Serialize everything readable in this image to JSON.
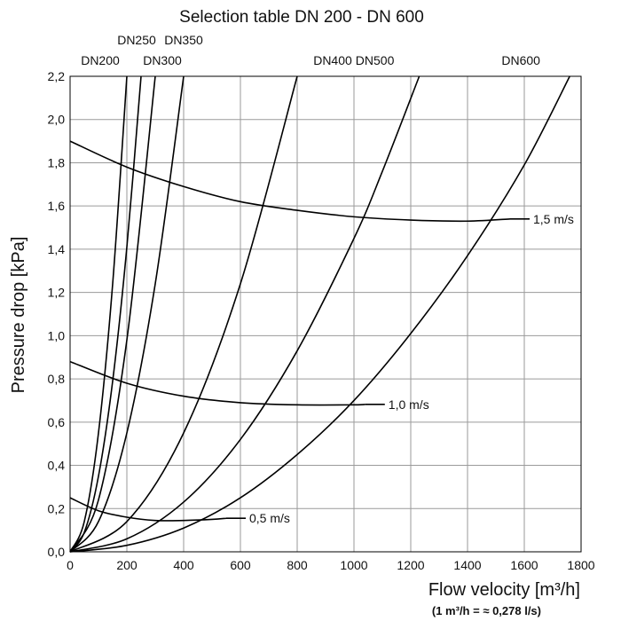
{
  "chart_data": {
    "type": "line",
    "title": "Selection table DN 200 - DN 600",
    "xlabel": "Flow velocity [m³/h]",
    "xlabel_note": "(1 m³/h = ≈ 0,278 l/s)",
    "ylabel": "Pressure drop [kPa]",
    "xlim": [
      0,
      1800
    ],
    "ylim": [
      0,
      2.2
    ],
    "grid": true,
    "x_ticks": [
      0,
      200,
      400,
      600,
      800,
      1000,
      1200,
      1400,
      1600,
      1800
    ],
    "x_tick_labels": [
      "0",
      "200",
      "400",
      "600",
      "800",
      "1000",
      "1200",
      "1400",
      "1600",
      "1800"
    ],
    "y_ticks": [
      0,
      0.2,
      0.4,
      0.6,
      0.8,
      1.0,
      1.2,
      1.4,
      1.6,
      1.8,
      2.0,
      2.2
    ],
    "y_tick_labels": [
      "0,0",
      "0,2",
      "0,4",
      "0,6",
      "0,8",
      "1,0",
      "1,2",
      "1,4",
      "1,6",
      "1,8",
      "2,0",
      "2,2"
    ],
    "series": [
      {
        "name": "DN200",
        "kind": "diameter",
        "x": [
          0,
          50,
          100,
          150,
          200
        ],
        "y": [
          0,
          0.14,
          0.55,
          1.24,
          2.2
        ]
      },
      {
        "name": "DN250",
        "kind": "diameter",
        "x": [
          0,
          50,
          100,
          150,
          200,
          250
        ],
        "y": [
          0,
          0.09,
          0.35,
          0.79,
          1.41,
          2.2
        ]
      },
      {
        "name": "DN300",
        "kind": "diameter",
        "x": [
          0,
          100,
          200,
          300
        ],
        "y": [
          0,
          0.24,
          0.98,
          2.2
        ]
      },
      {
        "name": "DN350",
        "kind": "diameter",
        "x": [
          0,
          100,
          200,
          300,
          400
        ],
        "y": [
          0,
          0.14,
          0.55,
          1.24,
          2.2
        ]
      },
      {
        "name": "DN400",
        "kind": "diameter",
        "x": [
          0,
          200,
          400,
          600,
          800
        ],
        "y": [
          0,
          0.14,
          0.55,
          1.24,
          2.2
        ]
      },
      {
        "name": "DN500",
        "kind": "diameter",
        "x": [
          0,
          200,
          400,
          600,
          800,
          1000,
          1100,
          1230
        ],
        "y": [
          0,
          0.06,
          0.23,
          0.52,
          0.93,
          1.45,
          1.76,
          2.2
        ]
      },
      {
        "name": "DN600",
        "kind": "diameter",
        "x": [
          0,
          200,
          400,
          600,
          800,
          1000,
          1200,
          1400,
          1600,
          1760
        ],
        "y": [
          0,
          0.03,
          0.11,
          0.25,
          0.45,
          0.7,
          1.01,
          1.37,
          1.79,
          2.2
        ]
      },
      {
        "name": "1,5 m/s",
        "kind": "velocity",
        "x": [
          0,
          200,
          400,
          600,
          800,
          1000,
          1200,
          1400,
          1550
        ],
        "y": [
          1.9,
          1.78,
          1.69,
          1.62,
          1.58,
          1.55,
          1.535,
          1.53,
          1.54
        ]
      },
      {
        "name": "1,0 m/s",
        "kind": "velocity",
        "x": [
          0,
          200,
          400,
          600,
          800,
          1000,
          1040
        ],
        "y": [
          0.88,
          0.78,
          0.72,
          0.69,
          0.68,
          0.68,
          0.682
        ]
      },
      {
        "name": "0,5 m/s",
        "kind": "velocity",
        "x": [
          0,
          100,
          200,
          300,
          400,
          500,
          550
        ],
        "y": [
          0.25,
          0.19,
          0.16,
          0.145,
          0.145,
          0.15,
          0.155
        ]
      }
    ],
    "diameter_labels": [
      {
        "text": "DN200",
        "row": "lower"
      },
      {
        "text": "DN250",
        "row": "upper"
      },
      {
        "text": "DN300",
        "row": "lower"
      },
      {
        "text": "DN350",
        "row": "upper"
      },
      {
        "text": "DN400",
        "row": "lower"
      },
      {
        "text": "DN500",
        "row": "lower"
      },
      {
        "text": "DN600",
        "row": "lower"
      }
    ]
  }
}
